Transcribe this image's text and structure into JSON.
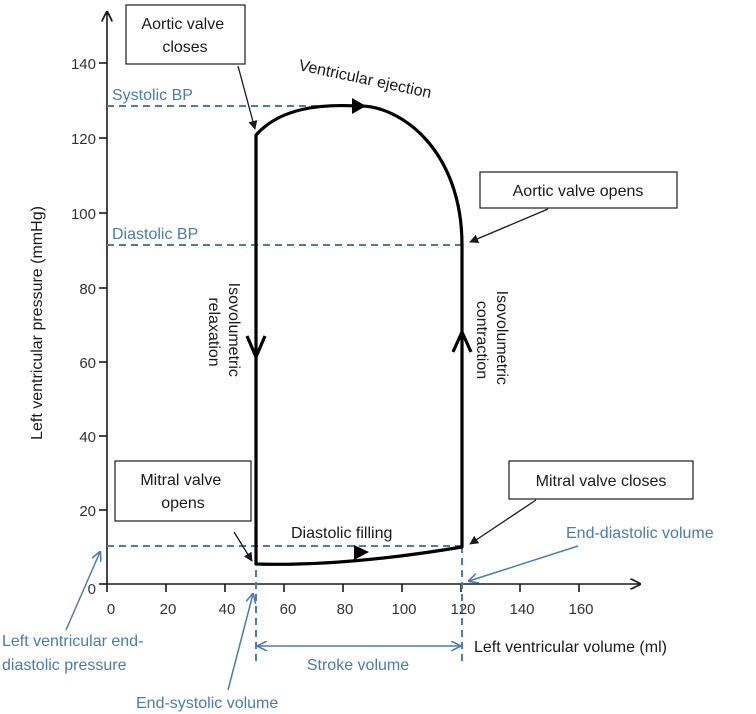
{
  "axes": {
    "ylabel": "Left ventricular pressure (mmHg)",
    "xlabel": "Left ventricular volume (ml)",
    "y_ticks": [
      "0",
      "20",
      "40",
      "60",
      "80",
      "100",
      "120",
      "140"
    ],
    "x_ticks": [
      "0",
      "20",
      "40",
      "60",
      "80",
      "100",
      "120",
      "140",
      "160"
    ]
  },
  "boxes": {
    "aortic_closes": [
      "Aortic valve",
      "closes"
    ],
    "aortic_opens": "Aortic valve opens",
    "mitral_opens": [
      "Mitral valve",
      "opens"
    ],
    "mitral_closes": "Mitral valve closes"
  },
  "labels": {
    "ventricular_ejection": "Ventricular ejection",
    "isovolumetric_relaxation": [
      "Isovolumetric",
      "relaxation"
    ],
    "isovolumetric_contraction": [
      "Isovolumetric",
      "contraction"
    ],
    "diastolic_filling": "Diastolic filling"
  },
  "blue_labels": {
    "systolic_bp": "Systolic BP",
    "diastolic_bp": "Diastolic BP",
    "end_diastolic_volume": "End-diastolic volume",
    "lvedp": [
      "Left ventricular end-",
      "diastolic pressure"
    ],
    "stroke_volume": "Stroke volume",
    "end_systolic_volume": "End-systolic volume"
  },
  "colors": {
    "annotation_blue": "#4a7ab8",
    "loop": "#000000"
  }
}
